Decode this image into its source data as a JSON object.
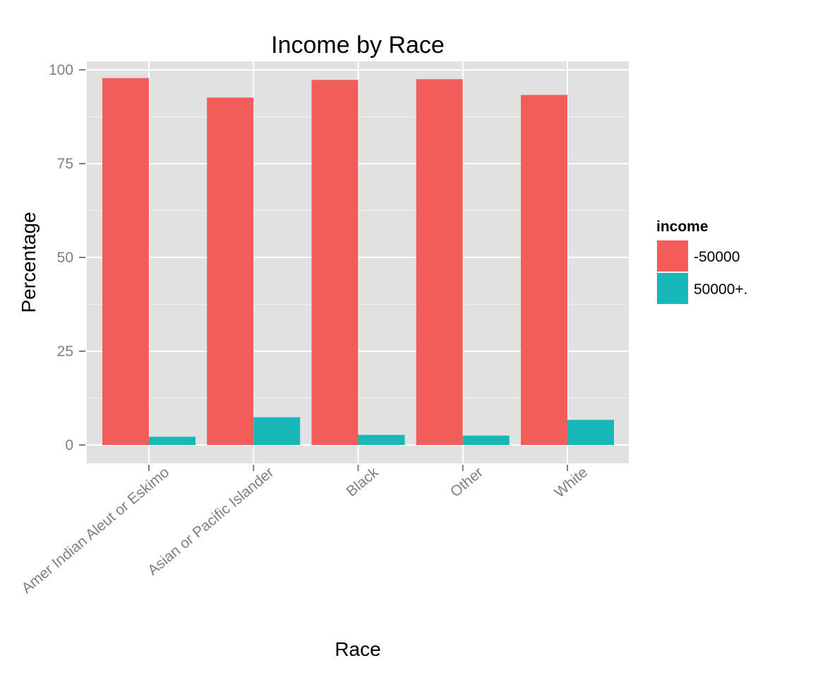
{
  "chart_data": {
    "type": "bar",
    "title": "Income by Race",
    "xlabel": "Race",
    "ylabel": "Percentage",
    "categories": [
      "Amer Indian Aleut or Eskimo",
      "Asian or Pacific Islander",
      "Black",
      "Other",
      "White"
    ],
    "series": [
      {
        "name": "-50000",
        "color": "#f25d59",
        "values": [
          97.8,
          92.6,
          97.3,
          97.5,
          93.3
        ]
      },
      {
        "name": "50000+.",
        "color": "#19b8b8",
        "values": [
          2.2,
          7.4,
          2.7,
          2.5,
          6.7
        ]
      }
    ],
    "ylim": [
      0,
      100
    ],
    "yticks": [
      0,
      25,
      50,
      75,
      100
    ],
    "grid": true,
    "legend": {
      "title": "income",
      "position": "right"
    },
    "panel_background": "#e1e1e1"
  }
}
